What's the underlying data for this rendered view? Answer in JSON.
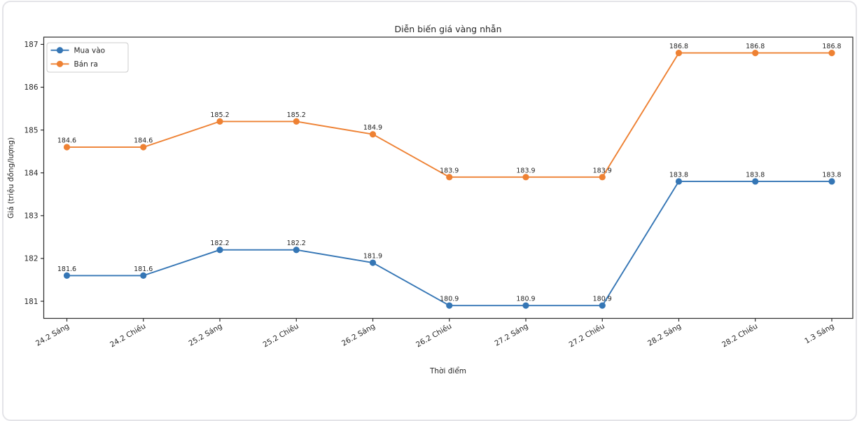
{
  "chart_data": {
    "type": "line",
    "title": "Diễn biến giá vàng nhẫn",
    "xlabel": "Thời điểm",
    "ylabel": "Giá (triệu đồng/lượng)",
    "categories": [
      "24.2 Sáng",
      "24.2 Chiều",
      "25.2 Sáng",
      "25.2 Chiều",
      "26.2 Sáng",
      "26.2 Chiều",
      "27.2 Sáng",
      "27.2 Chiều",
      "28.2 Sáng",
      "28.2 Chiều",
      "1.3 Sáng"
    ],
    "series": [
      {
        "name": "Mua vào",
        "color": "#3576b5",
        "values": [
          181.6,
          181.6,
          182.2,
          182.2,
          181.9,
          180.9,
          180.9,
          180.9,
          183.8,
          183.8,
          183.8
        ]
      },
      {
        "name": "Bán ra",
        "color": "#ee8133",
        "values": [
          184.6,
          184.6,
          185.2,
          185.2,
          184.9,
          183.9,
          183.9,
          183.9,
          186.8,
          186.8,
          186.8
        ]
      }
    ],
    "yticks": [
      181,
      182,
      183,
      184,
      185,
      186,
      187
    ],
    "ylim": [
      180.6,
      187.17
    ],
    "grid": false,
    "data_labels": true,
    "marker": "circle",
    "legend_position": "upper left",
    "text_color": "#262626",
    "spine_color": "#2b2b2b",
    "legend_border_color": "#cccccc"
  }
}
